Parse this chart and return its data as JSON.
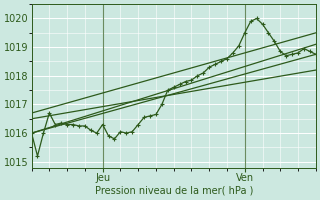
{
  "xlabel": "Pression niveau de la mer( hPa )",
  "bg_color": "#cce8e0",
  "grid_color": "#ffffff",
  "line_color": "#2d5a1b",
  "ylim": [
    1014.8,
    1020.5
  ],
  "xlim": [
    0,
    48
  ],
  "yticks": [
    1015,
    1016,
    1017,
    1018,
    1019,
    1020
  ],
  "xtick_pos": [
    12,
    36
  ],
  "xtick_labels": [
    "Jeu",
    "Ven"
  ],
  "series": [
    [
      0,
      1016.0
    ],
    [
      1,
      1015.2
    ],
    [
      2,
      1016.0
    ],
    [
      3,
      1016.7
    ],
    [
      4,
      1016.3
    ],
    [
      5,
      1016.35
    ],
    [
      6,
      1016.3
    ],
    [
      7,
      1016.3
    ],
    [
      8,
      1016.25
    ],
    [
      9,
      1016.25
    ],
    [
      10,
      1016.1
    ],
    [
      11,
      1016.0
    ],
    [
      12,
      1016.3
    ],
    [
      13,
      1015.9
    ],
    [
      14,
      1015.8
    ],
    [
      15,
      1016.05
    ],
    [
      16,
      1016.0
    ],
    [
      17,
      1016.05
    ],
    [
      18,
      1016.3
    ],
    [
      19,
      1016.55
    ],
    [
      20,
      1016.6
    ],
    [
      21,
      1016.65
    ],
    [
      22,
      1017.0
    ],
    [
      23,
      1017.5
    ],
    [
      24,
      1017.6
    ],
    [
      25,
      1017.7
    ],
    [
      26,
      1017.8
    ],
    [
      27,
      1017.85
    ],
    [
      28,
      1018.0
    ],
    [
      29,
      1018.1
    ],
    [
      30,
      1018.3
    ],
    [
      31,
      1018.4
    ],
    [
      32,
      1018.5
    ],
    [
      33,
      1018.6
    ],
    [
      34,
      1018.8
    ],
    [
      35,
      1019.05
    ],
    [
      36,
      1019.5
    ],
    [
      37,
      1019.9
    ],
    [
      38,
      1020.0
    ],
    [
      39,
      1019.8
    ],
    [
      40,
      1019.5
    ],
    [
      41,
      1019.2
    ],
    [
      42,
      1018.85
    ],
    [
      43,
      1018.7
    ],
    [
      44,
      1018.75
    ],
    [
      45,
      1018.8
    ],
    [
      46,
      1018.95
    ],
    [
      47,
      1018.85
    ],
    [
      48,
      1018.75
    ]
  ],
  "line1": [
    [
      0,
      1016.0
    ],
    [
      48,
      1019.1
    ]
  ],
  "line2": [
    [
      0,
      1016.0
    ],
    [
      48,
      1018.75
    ]
  ],
  "line3": [
    [
      0,
      1016.7
    ],
    [
      48,
      1019.5
    ]
  ],
  "line4": [
    [
      0,
      1016.5
    ],
    [
      48,
      1018.2
    ]
  ],
  "vline_color": "#4d7a4d",
  "vline_x": [
    12,
    36
  ]
}
